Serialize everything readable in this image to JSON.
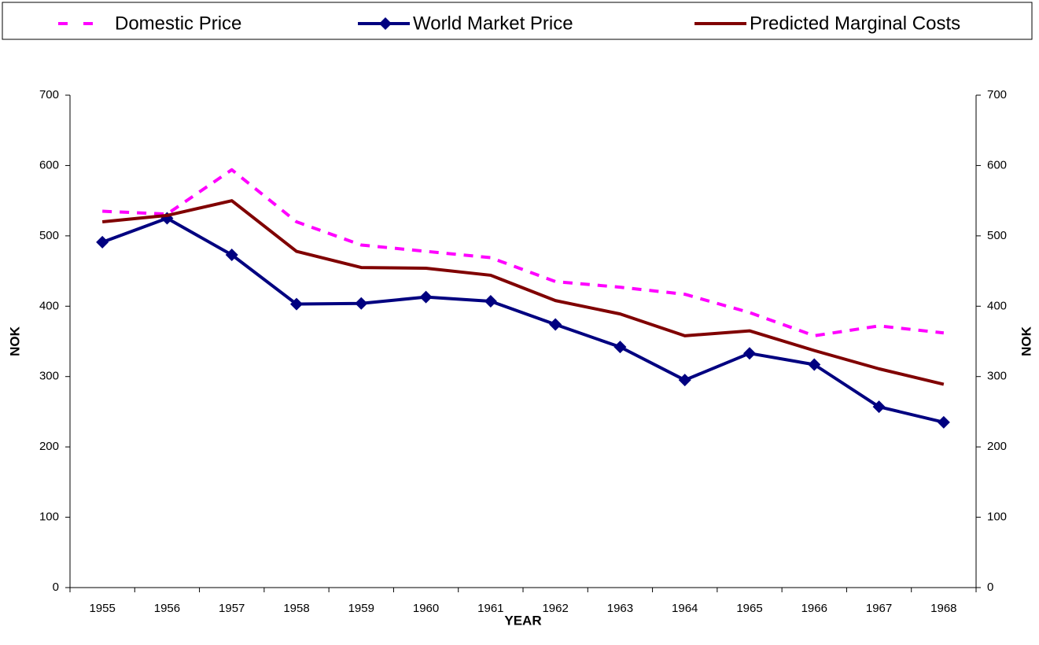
{
  "chart_data": {
    "type": "line",
    "x_label": "YEAR",
    "y_label": "NOK",
    "y2_label": "NOK",
    "categories": [
      "1955",
      "1956",
      "1957",
      "1958",
      "1959",
      "1960",
      "1961",
      "1962",
      "1963",
      "1964",
      "1965",
      "1966",
      "1967",
      "1968"
    ],
    "series": [
      {
        "name": "Domestic Price",
        "color": "#ff00ff",
        "dashed": true,
        "marker": null,
        "values": [
          535,
          531,
          594,
          520,
          487,
          478,
          469,
          435,
          427,
          417,
          391,
          358,
          372,
          362
        ]
      },
      {
        "name": "World Market Price",
        "color": "#000080",
        "dashed": false,
        "marker": "diamond",
        "values": [
          491,
          525,
          473,
          403,
          404,
          413,
          407,
          374,
          342,
          295,
          333,
          317,
          257,
          235
        ]
      },
      {
        "name": "Predicted Marginal Costs",
        "color": "#800000",
        "dashed": false,
        "marker": null,
        "values": [
          520,
          529,
          550,
          478,
          455,
          454,
          444,
          408,
          389,
          358,
          365,
          337,
          311,
          289
        ]
      }
    ],
    "ylim": [
      0,
      700
    ],
    "yticks": [
      0,
      100,
      200,
      300,
      400,
      500,
      600,
      700
    ],
    "y2lim": [
      0,
      700
    ],
    "y2ticks": [
      0,
      100,
      200,
      300,
      400,
      500,
      600,
      700
    ],
    "grid": false,
    "legend": "top"
  }
}
